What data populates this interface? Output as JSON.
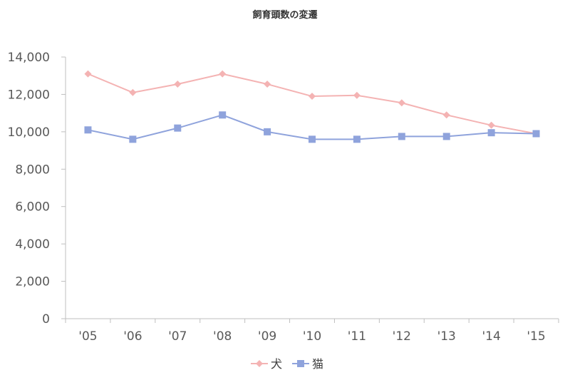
{
  "chart_data": {
    "type": "line",
    "title": "飼育頭数の変遷",
    "xlabel": "",
    "ylabel": "",
    "categories": [
      "'05",
      "'06",
      "'07",
      "'08",
      "'09",
      "'10",
      "'11",
      "'12",
      "'13",
      "'14",
      "'15"
    ],
    "ylim": [
      0,
      14000
    ],
    "yticks": [
      "0",
      "2,000",
      "4,000",
      "6,000",
      "8,000",
      "10,000",
      "12,000",
      "14,000"
    ],
    "ytick_values": [
      0,
      2000,
      4000,
      6000,
      8000,
      10000,
      12000,
      14000
    ],
    "grid": false,
    "legend_position": "bottom",
    "series": [
      {
        "name": "犬",
        "color": "#f4b3b3",
        "marker": "diamond",
        "values": [
          13100,
          12100,
          12550,
          13100,
          12550,
          11900,
          11950,
          11550,
          10900,
          10350,
          9900
        ]
      },
      {
        "name": "猫",
        "color": "#8fa3dc",
        "marker": "square",
        "values": [
          10100,
          9600,
          10200,
          10900,
          10000,
          9600,
          9600,
          9750,
          9750,
          9950,
          9900
        ]
      }
    ]
  }
}
